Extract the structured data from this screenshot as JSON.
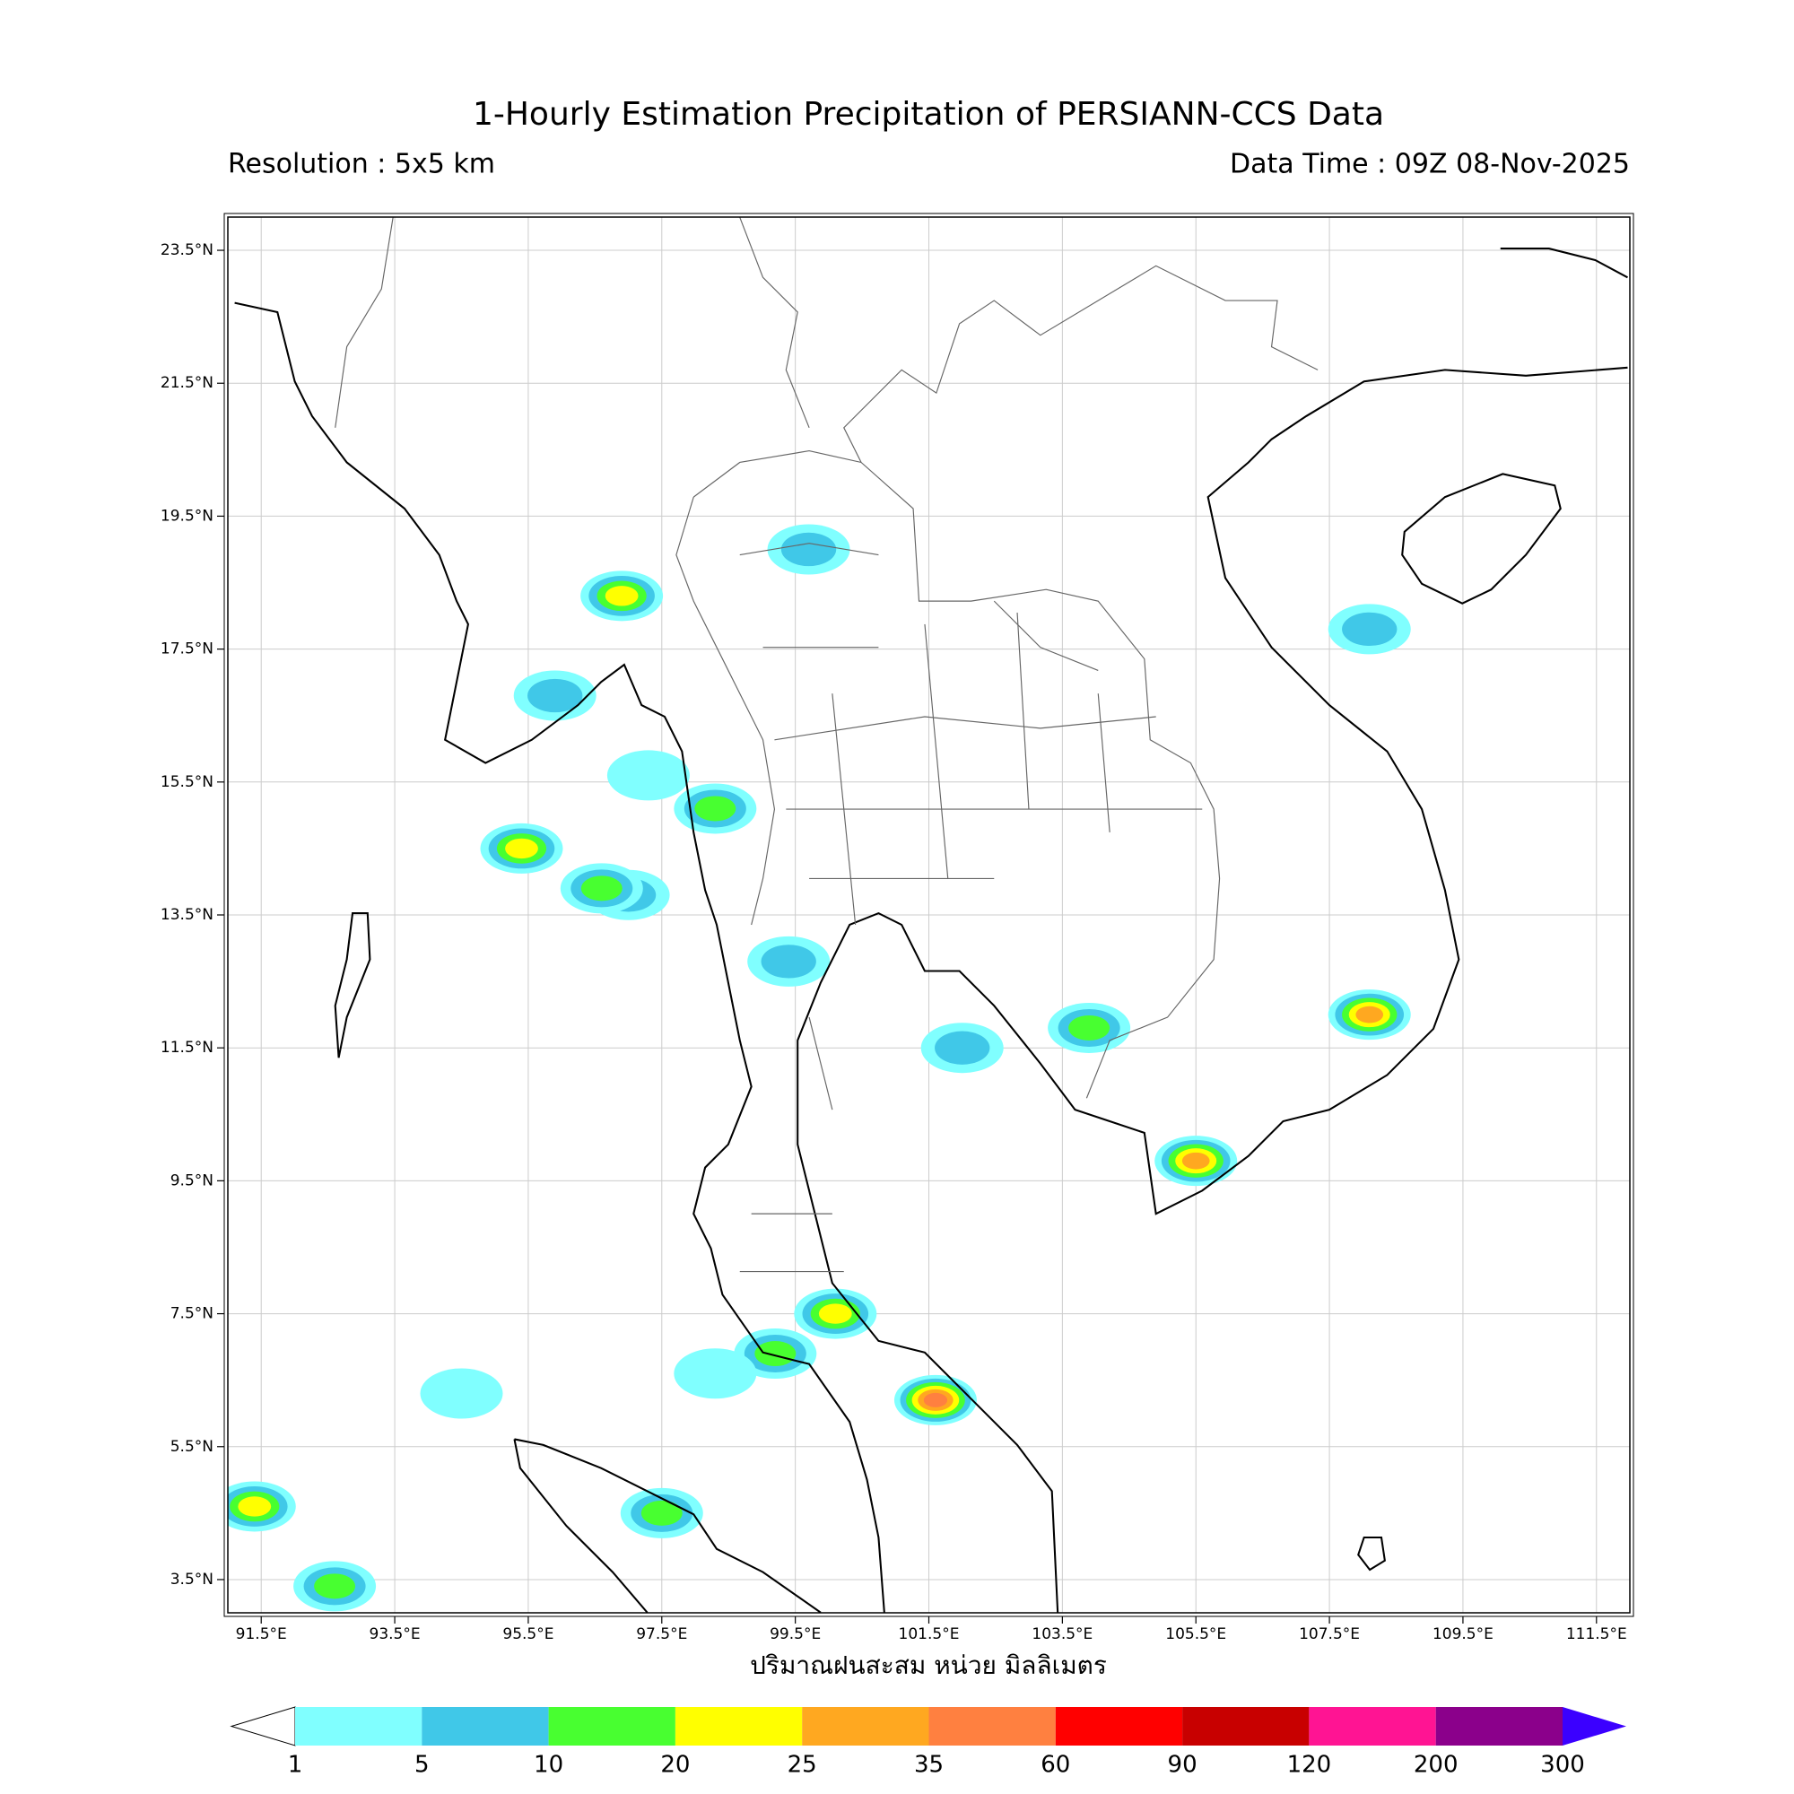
{
  "chart_data": {
    "type": "map",
    "title": "1-Hourly Estimation Precipitation of PERSIANN-CCS Data",
    "subtitle_left": "Resolution : 5x5 km",
    "subtitle_right": "Data Time : 09Z 08-Nov-2025",
    "xlabel": "ปริมาณฝนสะสม หน่วย มิลลิเมตร",
    "xlim": [
      91,
      112
    ],
    "ylim": [
      3,
      24
    ],
    "grid": true,
    "xticks": [
      {
        "value": 91.5,
        "label": "91.5°E"
      },
      {
        "value": 93.5,
        "label": "93.5°E"
      },
      {
        "value": 95.5,
        "label": "95.5°E"
      },
      {
        "value": 97.5,
        "label": "97.5°E"
      },
      {
        "value": 99.5,
        "label": "99.5°E"
      },
      {
        "value": 101.5,
        "label": "101.5°E"
      },
      {
        "value": 103.5,
        "label": "103.5°E"
      },
      {
        "value": 105.5,
        "label": "105.5°E"
      },
      {
        "value": 107.5,
        "label": "107.5°E"
      },
      {
        "value": 109.5,
        "label": "109.5°E"
      },
      {
        "value": 111.5,
        "label": "111.5°E"
      }
    ],
    "yticks": [
      {
        "value": 3.5,
        "label": "3.5°N"
      },
      {
        "value": 5.5,
        "label": "5.5°N"
      },
      {
        "value": 7.5,
        "label": "7.5°N"
      },
      {
        "value": 9.5,
        "label": "9.5°N"
      },
      {
        "value": 11.5,
        "label": "11.5°N"
      },
      {
        "value": 13.5,
        "label": "13.5°N"
      },
      {
        "value": 15.5,
        "label": "15.5°N"
      },
      {
        "value": 17.5,
        "label": "17.5°N"
      },
      {
        "value": 19.5,
        "label": "19.5°N"
      },
      {
        "value": 21.5,
        "label": "21.5°N"
      },
      {
        "value": 23.5,
        "label": "23.5°N"
      }
    ],
    "colorbar": {
      "levels": [
        1,
        5,
        10,
        20,
        25,
        35,
        60,
        90,
        120,
        200,
        300
      ],
      "colors": [
        "#80ffff",
        "#40c8e8",
        "#48ff30",
        "#ffff00",
        "#ffa820",
        "#ff8040",
        "#ff0000",
        "#c80000",
        "#ff1493",
        "#8b008b"
      ],
      "under_color": "#ffffff",
      "over_color": "#3b00ff"
    },
    "rain_cells": [
      {
        "lon": 95.9,
        "lat": 16.8,
        "value": 5
      },
      {
        "lon": 98.3,
        "lat": 15.1,
        "value": 10
      },
      {
        "lon": 97.3,
        "lat": 15.6,
        "value": 1
      },
      {
        "lon": 97.0,
        "lat": 13.8,
        "value": 5
      },
      {
        "lon": 99.2,
        "lat": 6.9,
        "value": 10
      },
      {
        "lon": 98.3,
        "lat": 6.6,
        "value": 1
      },
      {
        "lon": 101.6,
        "lat": 6.2,
        "value": 35
      },
      {
        "lon": 105.5,
        "lat": 9.8,
        "value": 25
      },
      {
        "lon": 103.9,
        "lat": 11.8,
        "value": 10
      },
      {
        "lon": 96.9,
        "lat": 18.3,
        "value": 20
      },
      {
        "lon": 99.7,
        "lat": 19.0,
        "value": 5
      },
      {
        "lon": 97.5,
        "lat": 4.5,
        "value": 10
      },
      {
        "lon": 92.6,
        "lat": 3.4,
        "value": 10
      },
      {
        "lon": 91.4,
        "lat": 4.6,
        "value": 20
      },
      {
        "lon": 94.5,
        "lat": 6.3,
        "value": 1
      },
      {
        "lon": 100.1,
        "lat": 7.5,
        "value": 20
      },
      {
        "lon": 108.1,
        "lat": 17.8,
        "value": 5
      },
      {
        "lon": 108.1,
        "lat": 12.0,
        "value": 25
      },
      {
        "lon": 95.4,
        "lat": 14.5,
        "value": 20
      },
      {
        "lon": 96.6,
        "lat": 13.9,
        "value": 10
      },
      {
        "lon": 99.4,
        "lat": 12.8,
        "value": 5
      },
      {
        "lon": 102.0,
        "lat": 11.5,
        "value": 5
      }
    ]
  }
}
